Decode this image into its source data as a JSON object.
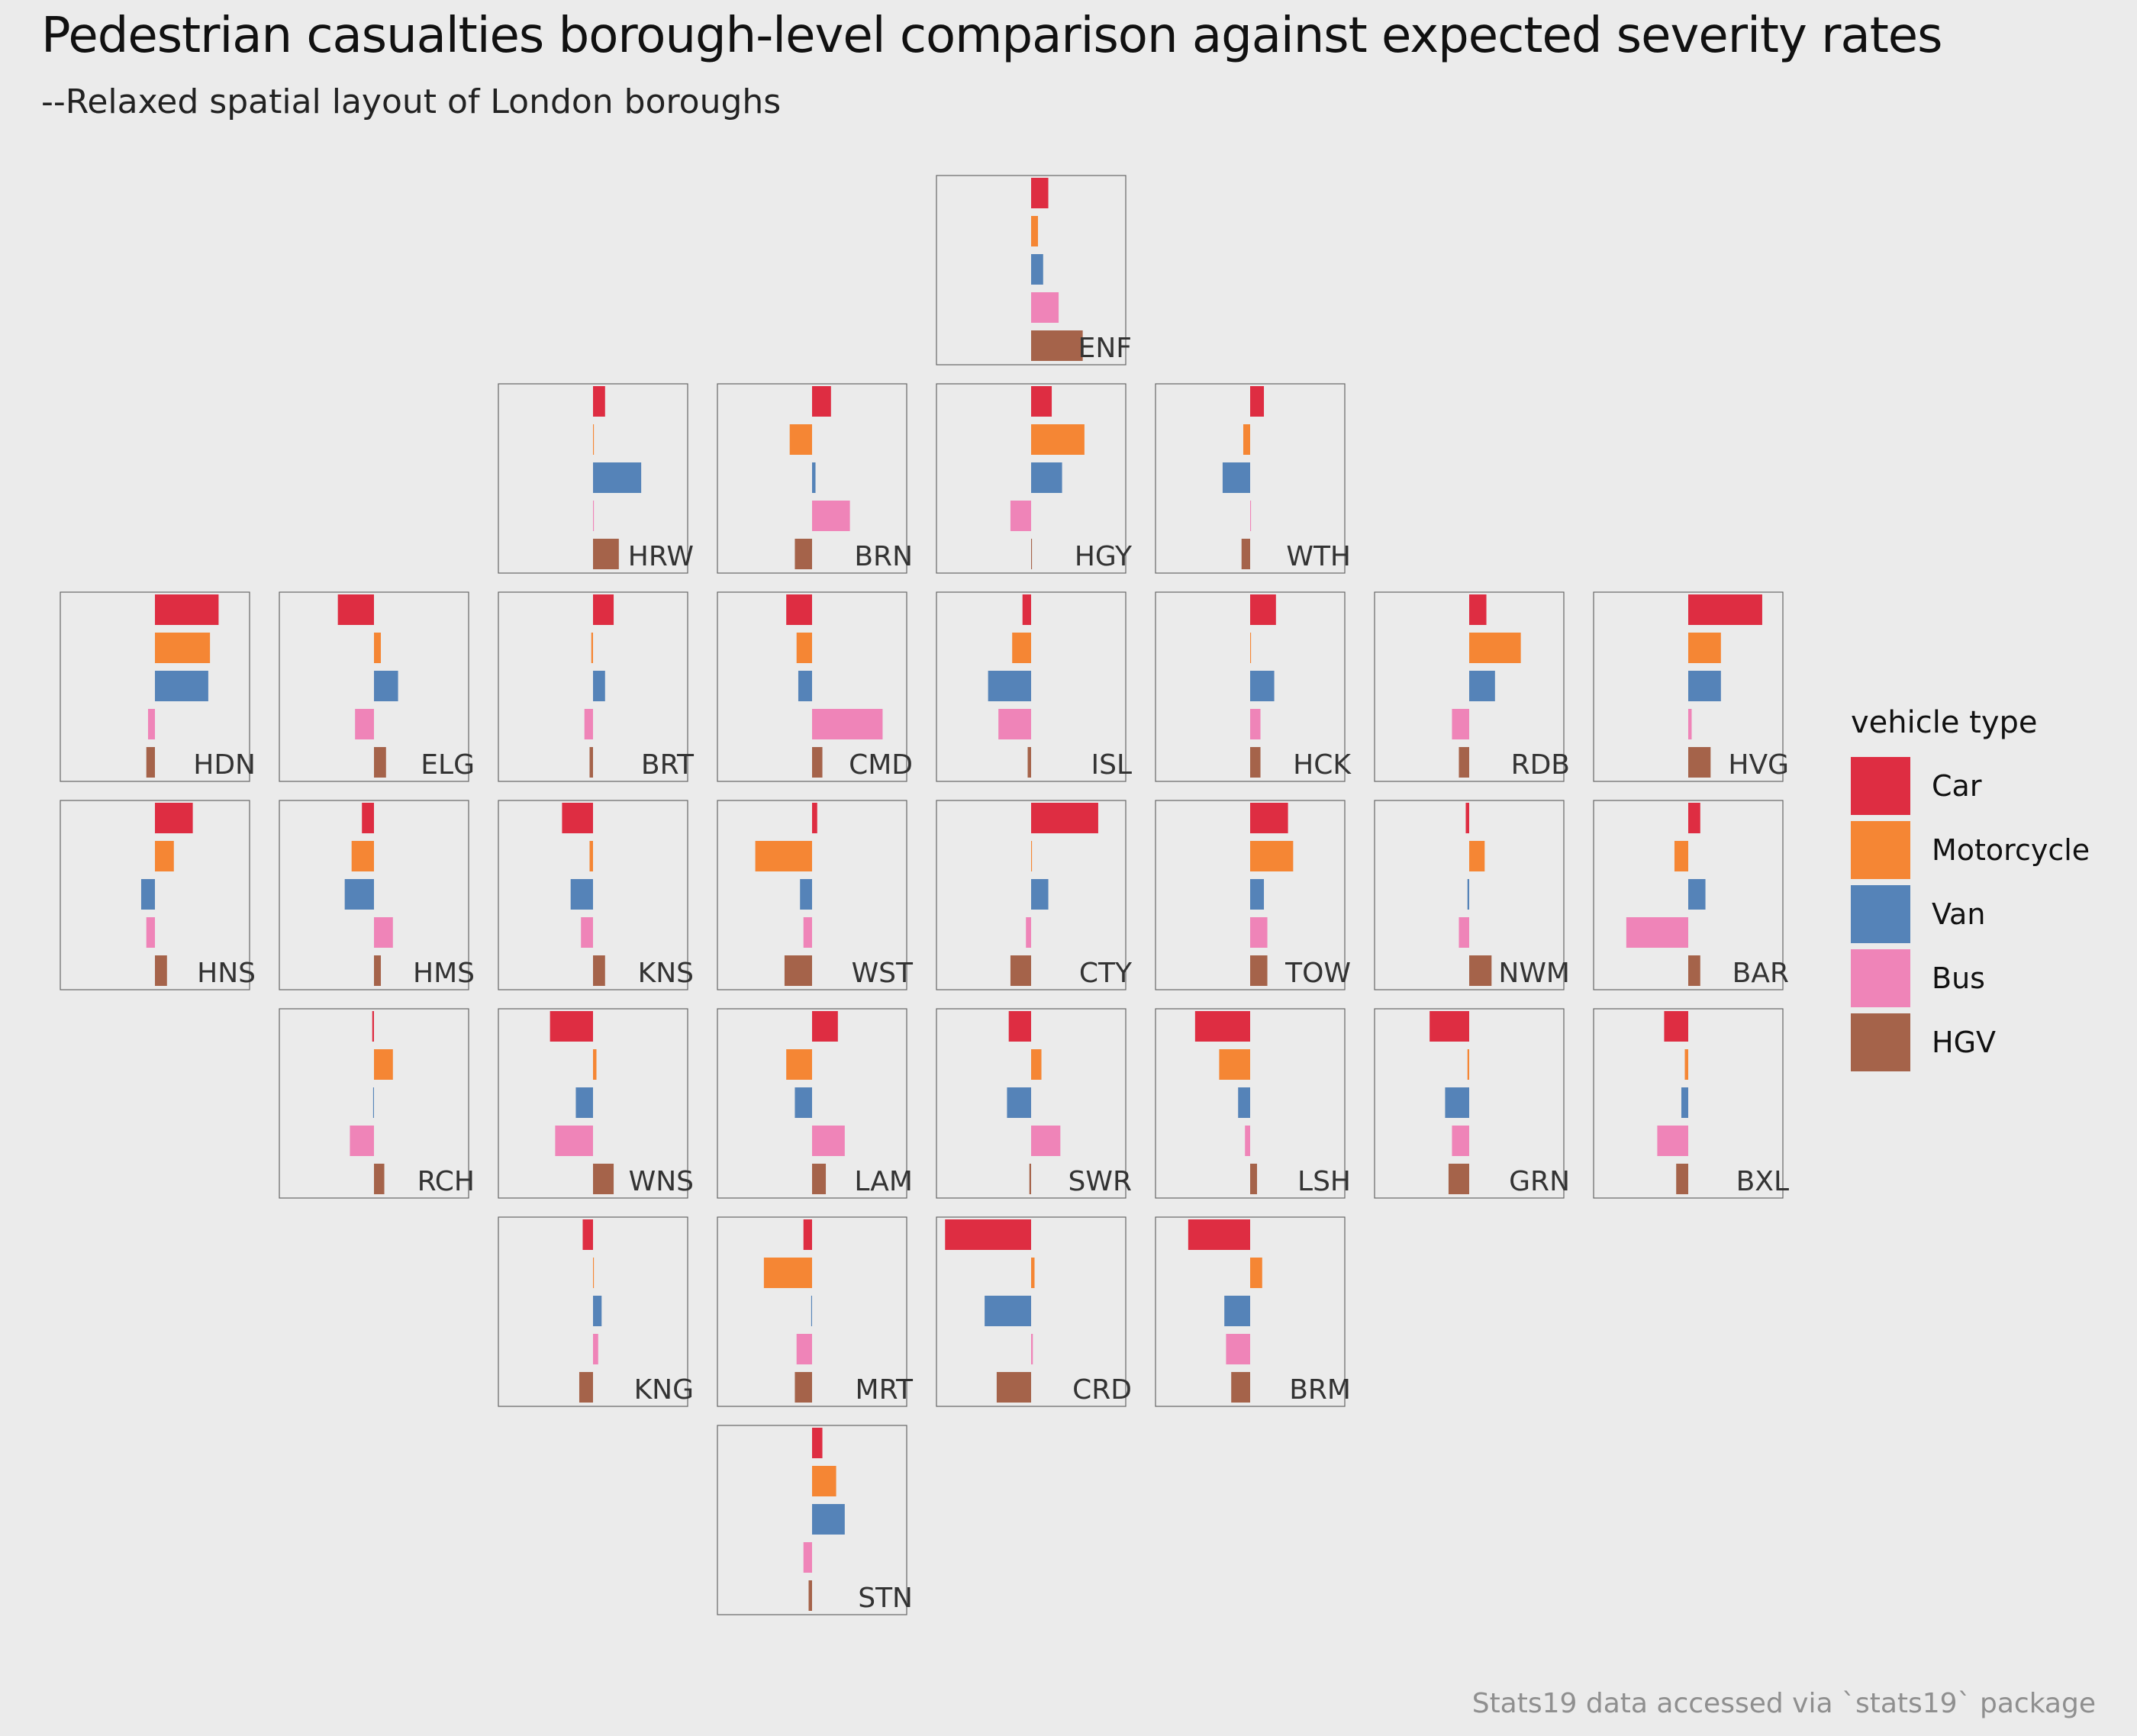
{
  "title": "Pedestrian casualties borough-level comparison against expected severity rates",
  "subtitle": "--Relaxed spatial layout of London boroughs",
  "caption": "Stats19 data accessed via `stats19` package",
  "chart_data": {
    "type": "bar",
    "orientation": "horizontal",
    "layout": "small multiples arranged as a London borough grid",
    "categories": [
      "Car",
      "Motorcycle",
      "Van",
      "Bus",
      "HGV"
    ],
    "legend": {
      "title": "vehicle type",
      "placement": "right",
      "entries": [
        "Car",
        "Motorcycle",
        "Van",
        "Bus",
        "HGV"
      ]
    },
    "colors": [
      "#de2d42",
      "#f58634",
      "#5583b8",
      "#ef84b8",
      "#a5634a"
    ],
    "grid": false,
    "xlim": [
      -0.55,
      0.55
    ],
    "panels": [
      {
        "code": "ENF",
        "row": 0,
        "col": 4,
        "values": [
          0.1,
          0.04,
          0.07,
          0.16,
          0.3
        ]
      },
      {
        "code": "HRW",
        "row": 1,
        "col": 2,
        "values": [
          0.07,
          0.005,
          0.28,
          0.005,
          0.15
        ]
      },
      {
        "code": "BRN",
        "row": 1,
        "col": 3,
        "values": [
          0.11,
          -0.13,
          0.02,
          0.22,
          -0.1
        ]
      },
      {
        "code": "HGY",
        "row": 1,
        "col": 4,
        "values": [
          0.12,
          0.31,
          0.18,
          -0.12,
          0.005
        ]
      },
      {
        "code": "WTH",
        "row": 1,
        "col": 5,
        "values": [
          0.08,
          -0.04,
          -0.16,
          0.005,
          -0.05
        ]
      },
      {
        "code": "HDN",
        "row": 2,
        "col": 0,
        "values": [
          0.37,
          0.32,
          0.31,
          -0.04,
          -0.05
        ]
      },
      {
        "code": "ELG",
        "row": 2,
        "col": 1,
        "values": [
          -0.21,
          0.04,
          0.14,
          -0.11,
          0.07
        ]
      },
      {
        "code": "BRT",
        "row": 2,
        "col": 2,
        "values": [
          0.12,
          -0.01,
          0.07,
          -0.05,
          -0.02
        ]
      },
      {
        "code": "CMD",
        "row": 2,
        "col": 3,
        "values": [
          -0.15,
          -0.09,
          -0.08,
          0.41,
          0.06
        ]
      },
      {
        "code": "ISL",
        "row": 2,
        "col": 4,
        "values": [
          -0.05,
          -0.11,
          -0.25,
          -0.19,
          -0.02
        ]
      },
      {
        "code": "HCK",
        "row": 2,
        "col": 5,
        "values": [
          0.15,
          0.005,
          0.14,
          0.06,
          0.06
        ]
      },
      {
        "code": "RDB",
        "row": 2,
        "col": 6,
        "values": [
          0.1,
          0.3,
          0.15,
          -0.1,
          -0.06
        ]
      },
      {
        "code": "HVG",
        "row": 2,
        "col": 7,
        "values": [
          0.43,
          0.19,
          0.19,
          0.02,
          0.13
        ]
      },
      {
        "code": "HNS",
        "row": 3,
        "col": 0,
        "values": [
          0.22,
          0.11,
          -0.08,
          -0.05,
          0.07
        ]
      },
      {
        "code": "HMS",
        "row": 3,
        "col": 1,
        "values": [
          -0.07,
          -0.13,
          -0.17,
          0.11,
          0.04
        ]
      },
      {
        "code": "KNS",
        "row": 3,
        "col": 2,
        "values": [
          -0.18,
          -0.02,
          -0.13,
          -0.07,
          0.07
        ]
      },
      {
        "code": "WST",
        "row": 3,
        "col": 3,
        "values": [
          0.03,
          -0.33,
          -0.07,
          -0.05,
          -0.16
        ]
      },
      {
        "code": "CTY",
        "row": 3,
        "col": 4,
        "values": [
          0.39,
          0.005,
          0.1,
          -0.03,
          -0.12
        ]
      },
      {
        "code": "TOW",
        "row": 3,
        "col": 5,
        "values": [
          0.22,
          0.25,
          0.08,
          0.1,
          0.1
        ]
      },
      {
        "code": "NWM",
        "row": 3,
        "col": 6,
        "values": [
          -0.02,
          0.09,
          -0.01,
          -0.06,
          0.13
        ]
      },
      {
        "code": "BAR",
        "row": 3,
        "col": 7,
        "values": [
          0.07,
          -0.08,
          0.1,
          -0.36,
          0.07
        ]
      },
      {
        "code": "RCH",
        "row": 4,
        "col": 1,
        "values": [
          -0.01,
          0.11,
          -0.005,
          -0.14,
          0.06
        ]
      },
      {
        "code": "WNS",
        "row": 4,
        "col": 2,
        "values": [
          -0.25,
          0.02,
          -0.1,
          -0.22,
          0.12
        ]
      },
      {
        "code": "LAM",
        "row": 4,
        "col": 3,
        "values": [
          0.15,
          -0.15,
          -0.1,
          0.19,
          0.08
        ]
      },
      {
        "code": "SWR",
        "row": 4,
        "col": 4,
        "values": [
          -0.13,
          0.06,
          -0.14,
          0.17,
          -0.01
        ]
      },
      {
        "code": "LSH",
        "row": 4,
        "col": 5,
        "values": [
          -0.32,
          -0.18,
          -0.07,
          -0.03,
          0.04
        ]
      },
      {
        "code": "GRN",
        "row": 4,
        "col": 6,
        "values": [
          -0.23,
          -0.01,
          -0.14,
          -0.1,
          -0.12
        ]
      },
      {
        "code": "BXL",
        "row": 4,
        "col": 7,
        "values": [
          -0.14,
          -0.02,
          -0.04,
          -0.18,
          -0.07
        ]
      },
      {
        "code": "KNG",
        "row": 5,
        "col": 2,
        "values": [
          -0.06,
          0.005,
          0.05,
          0.03,
          -0.08
        ]
      },
      {
        "code": "MRT",
        "row": 5,
        "col": 3,
        "values": [
          -0.05,
          -0.28,
          -0.005,
          -0.09,
          -0.1
        ]
      },
      {
        "code": "CRD",
        "row": 5,
        "col": 4,
        "values": [
          -0.5,
          0.02,
          -0.27,
          0.01,
          -0.2
        ]
      },
      {
        "code": "BRM",
        "row": 5,
        "col": 5,
        "values": [
          -0.36,
          0.07,
          -0.15,
          -0.14,
          -0.11
        ]
      },
      {
        "code": "STN",
        "row": 6,
        "col": 3,
        "values": [
          0.06,
          0.14,
          0.19,
          -0.05,
          -0.02
        ]
      }
    ]
  }
}
